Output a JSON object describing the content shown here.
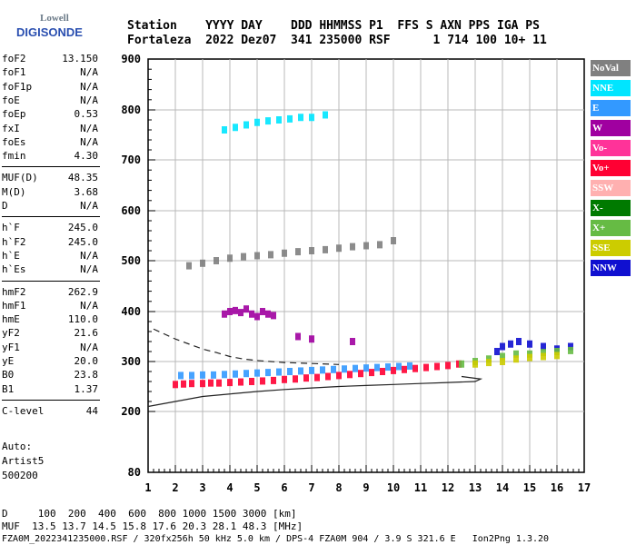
{
  "logo": {
    "line1": "Lowell",
    "line2": "DIGISONDE"
  },
  "header": {
    "line1": "Station    YYYY DAY    DDD HHMMSS P1  FFS S AXN PPS IGA PS",
    "line2": "Fortaleza  2022 Dez07  341 235000 RSF      1 714 100 10+ 11"
  },
  "params": [
    {
      "name": "foF2",
      "value": "13.150"
    },
    {
      "name": "foF1",
      "value": "N/A"
    },
    {
      "name": "foF1p",
      "value": "N/A"
    },
    {
      "name": "foE",
      "value": "N/A"
    },
    {
      "name": "foEp",
      "value": "0.53"
    },
    {
      "name": "fxI",
      "value": "N/A"
    },
    {
      "name": "foEs",
      "value": "N/A"
    },
    {
      "name": "fmin",
      "value": "4.30"
    },
    {
      "name": "MUF(D)",
      "value": "48.35"
    },
    {
      "name": "M(D)",
      "value": "3.68"
    },
    {
      "name": "D",
      "value": "N/A"
    },
    {
      "name": "h`F",
      "value": "245.0"
    },
    {
      "name": "h`F2",
      "value": "245.0"
    },
    {
      "name": "h`E",
      "value": "N/A"
    },
    {
      "name": "h`Es",
      "value": "N/A"
    },
    {
      "name": "hmF2",
      "value": "262.9"
    },
    {
      "name": "hmF1",
      "value": "N/A"
    },
    {
      "name": "hmE",
      "value": "110.0"
    },
    {
      "name": "yF2",
      "value": "21.6"
    },
    {
      "name": "yF1",
      "value": "N/A"
    },
    {
      "name": "yE",
      "value": "20.0"
    },
    {
      "name": "B0",
      "value": "23.8"
    },
    {
      "name": "B1",
      "value": "1.37"
    },
    {
      "name": "C-level",
      "value": "44"
    }
  ],
  "auto": {
    "line1": "Auto:",
    "line2": "Artist5",
    "line3": "500200"
  },
  "legend": [
    {
      "label": "NoVal",
      "color": "#808080"
    },
    {
      "label": "NNE",
      "color": "#00e5ff"
    },
    {
      "label": "E",
      "color": "#3399ff"
    },
    {
      "label": "W",
      "color": "#a000a0"
    },
    {
      "label": "Vo-",
      "color": "#ff3399"
    },
    {
      "label": "Vo+",
      "color": "#ff0033"
    },
    {
      "label": "SSW",
      "color": "#ffb0b0"
    },
    {
      "label": "X-",
      "color": "#007a00"
    },
    {
      "label": "X+",
      "color": "#66bb44"
    },
    {
      "label": "SSE",
      "color": "#cccc00"
    },
    {
      "label": "NNW",
      "color": "#1010d0"
    }
  ],
  "bottom": {
    "d_line": "D     100  200  400  600  800 1000 1500 3000 [km]",
    "muf_line": "MUF  13.5 13.7 14.5 15.8 17.6 20.3 28.1 48.3 [MHz]",
    "file_line": "FZA0M_2022341235000.RSF / 320fx256h 50 kHz 5.0 km / DPS-4 FZA0M 904 / 3.9 S 321.6 E   Ion2Png 1.3.20"
  },
  "chart_data": {
    "type": "scatter",
    "xlim": [
      1,
      17
    ],
    "ylim": [
      80,
      900
    ],
    "xticks": [
      "1",
      "2",
      "3",
      "4",
      "5",
      "6",
      "7",
      "8",
      "9",
      "10",
      "11",
      "12",
      "13",
      "14",
      "15",
      "16",
      "17"
    ],
    "yticks": [
      "80",
      "200",
      "300",
      "400",
      "500",
      "600",
      "700",
      "800",
      "900"
    ],
    "grid": true,
    "series": [
      {
        "name": "Vo+",
        "color": "#ff0033",
        "x": [
          2.0,
          2.3,
          2.6,
          3.0,
          3.3,
          3.6,
          4.0,
          4.4,
          4.8,
          5.2,
          5.6,
          6.0,
          6.4,
          6.8,
          7.2,
          7.6,
          8.0,
          8.4,
          8.8,
          9.2,
          9.6,
          10.0,
          10.4,
          10.8,
          11.2,
          11.6,
          12.0,
          12.4
        ],
        "y": [
          254,
          255,
          256,
          256,
          257,
          257,
          258,
          259,
          260,
          261,
          262,
          264,
          265,
          267,
          268,
          270,
          272,
          274,
          276,
          278,
          280,
          282,
          284,
          286,
          288,
          290,
          292,
          295
        ]
      },
      {
        "name": "E",
        "color": "#3399ff",
        "x": [
          2.2,
          2.6,
          3.0,
          3.4,
          3.8,
          4.2,
          4.6,
          5.0,
          5.4,
          5.8,
          6.2,
          6.6,
          7.0,
          7.4,
          7.8,
          8.2,
          8.6,
          9.0,
          9.4,
          9.8,
          10.2,
          10.6
        ],
        "y": [
          272,
          272,
          273,
          273,
          274,
          275,
          276,
          277,
          278,
          279,
          280,
          281,
          282,
          283,
          284,
          285,
          286,
          287,
          288,
          289,
          290,
          291
        ]
      },
      {
        "name": "W",
        "color": "#a000a0",
        "x": [
          3.8,
          4.0,
          4.2,
          4.4,
          4.6,
          4.8,
          5.0,
          5.2,
          5.4,
          5.6,
          6.5,
          7.0,
          8.5
        ],
        "y": [
          395,
          400,
          402,
          398,
          405,
          395,
          390,
          400,
          395,
          392,
          350,
          345,
          340
        ]
      },
      {
        "name": "NNE",
        "color": "#00e5ff",
        "x": [
          3.8,
          4.2,
          4.6,
          5.0,
          5.4,
          5.8,
          6.2,
          6.6,
          7.0,
          7.5
        ],
        "y": [
          760,
          765,
          770,
          775,
          778,
          780,
          782,
          785,
          785,
          790
        ]
      },
      {
        "name": "NoVal",
        "color": "#808080",
        "x": [
          2.5,
          3.0,
          3.5,
          4.0,
          4.5,
          5.0,
          5.5,
          6.0,
          6.5,
          7.0,
          7.5,
          8.0,
          8.5,
          9.0,
          9.5,
          10.0
        ],
        "y": [
          490,
          495,
          500,
          505,
          508,
          510,
          512,
          515,
          518,
          520,
          522,
          525,
          528,
          530,
          532,
          540
        ]
      },
      {
        "name": "NNW",
        "color": "#1010d0",
        "x": [
          13.8,
          14.0,
          14.3,
          14.6,
          15.0,
          15.5,
          16.0,
          16.5
        ],
        "y": [
          320,
          330,
          335,
          340,
          335,
          330,
          325,
          330
        ]
      },
      {
        "name": "X+",
        "color": "#66bb44",
        "x": [
          12.5,
          13.0,
          13.5,
          14.0,
          14.5,
          15.0,
          15.5,
          16.0,
          16.5
        ],
        "y": [
          295,
          300,
          305,
          310,
          315,
          315,
          318,
          320,
          322
        ]
      },
      {
        "name": "SSE",
        "color": "#cccc00",
        "x": [
          13.0,
          13.5,
          14.0,
          14.5,
          15.0,
          15.5,
          16.0
        ],
        "y": [
          295,
          298,
          300,
          305,
          308,
          310,
          312
        ]
      }
    ],
    "lines": [
      {
        "name": "virtual-height-trace",
        "x": [
          1.0,
          1.5,
          2.0,
          2.5,
          3.0,
          4.0,
          5.0,
          6.0,
          7.0,
          8.0,
          9.0,
          10.0,
          11.0,
          12.0,
          13.0,
          13.2,
          12.5
        ],
        "y": [
          210,
          215,
          220,
          225,
          230,
          235,
          240,
          244,
          247,
          250,
          252,
          254,
          256,
          258,
          260,
          265,
          270
        ]
      },
      {
        "name": "profile-dashed",
        "x": [
          1.2,
          1.6,
          2.0,
          2.5,
          3.0,
          3.5,
          4.0,
          4.5,
          5.0,
          5.5,
          6.0,
          6.5,
          7.0,
          7.5,
          8.0
        ],
        "y": [
          365,
          355,
          345,
          335,
          325,
          318,
          310,
          305,
          302,
          300,
          298,
          297,
          296,
          295,
          294
        ]
      }
    ]
  }
}
